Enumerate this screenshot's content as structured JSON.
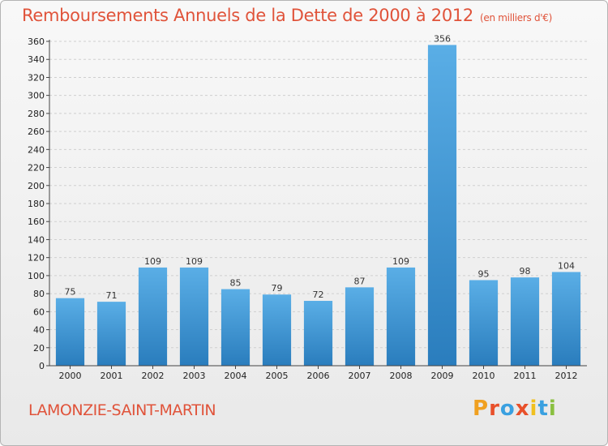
{
  "chart_data": {
    "type": "bar",
    "title": "Remboursements Annuels de la Dette de 2000 à 2012",
    "subtitle": "(en milliers d'€)",
    "categories": [
      "2000",
      "2001",
      "2002",
      "2003",
      "2004",
      "2005",
      "2006",
      "2007",
      "2008",
      "2009",
      "2010",
      "2011",
      "2012"
    ],
    "values": [
      75,
      71,
      109,
      109,
      85,
      79,
      72,
      87,
      109,
      356,
      95,
      98,
      104
    ],
    "ylim": [
      0,
      360
    ],
    "yticks": [
      0,
      20,
      40,
      60,
      80,
      100,
      120,
      140,
      160,
      180,
      200,
      220,
      240,
      260,
      280,
      300,
      320,
      340,
      360
    ],
    "grid": true,
    "bar_color_top": "#5aaee6",
    "bar_color_bottom": "#2a7dbd"
  },
  "footer": {
    "city": "LAMONZIE-SAINT-MARTIN",
    "logo_letters": [
      "P",
      "r",
      "o",
      "x",
      "i",
      "t",
      "i"
    ],
    "logo_colors": [
      "#f0a020",
      "#e8502a",
      "#3aa0e0",
      "#e8502a",
      "#f0c020",
      "#3aa0e0",
      "#8ac040"
    ]
  },
  "colors": {
    "accent": "#e0533a",
    "axis": "#444444",
    "grid": "#cfcfcf"
  }
}
